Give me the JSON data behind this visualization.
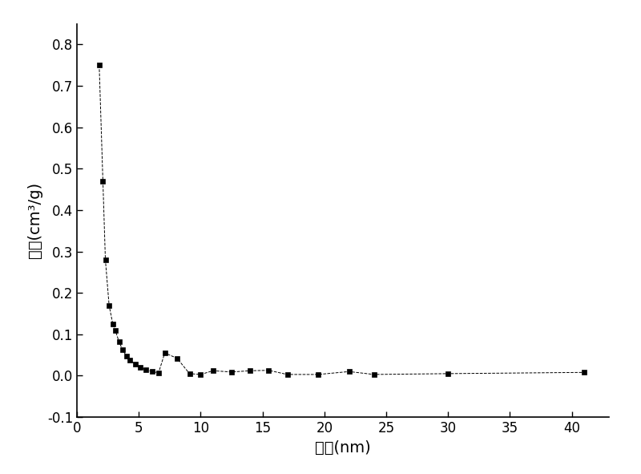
{
  "x": [
    1.8,
    2.1,
    2.3,
    2.6,
    2.9,
    3.1,
    3.4,
    3.7,
    4.0,
    4.3,
    4.7,
    5.1,
    5.6,
    6.1,
    6.6,
    7.1,
    8.1,
    9.1,
    10.0,
    11.0,
    12.5,
    14.0,
    15.5,
    17.0,
    19.5,
    22.0,
    24.0,
    30.0,
    41.0
  ],
  "y": [
    0.75,
    0.47,
    0.28,
    0.17,
    0.125,
    0.11,
    0.082,
    0.062,
    0.048,
    0.037,
    0.028,
    0.02,
    0.014,
    0.01,
    0.007,
    0.055,
    0.042,
    0.005,
    0.003,
    0.012,
    0.009,
    0.012,
    0.013,
    0.003,
    0.003,
    0.01,
    0.003,
    0.005,
    0.008
  ],
  "xlabel": "孔径(nm)",
  "ylabel": "孔容(cm³/g)",
  "xlim": [
    0,
    43
  ],
  "ylim": [
    -0.1,
    0.85
  ],
  "yticks": [
    -0.1,
    0.0,
    0.1,
    0.2,
    0.3,
    0.4,
    0.5,
    0.6,
    0.7,
    0.8
  ],
  "xticks": [
    0,
    5,
    10,
    15,
    20,
    25,
    30,
    35,
    40
  ],
  "line_color": "#000000",
  "marker_color": "#000000",
  "background_color": "#ffffff",
  "line_style": "--",
  "marker": "s",
  "marker_size": 5,
  "line_width": 0.7,
  "font_size": 14,
  "tick_fontsize": 12
}
